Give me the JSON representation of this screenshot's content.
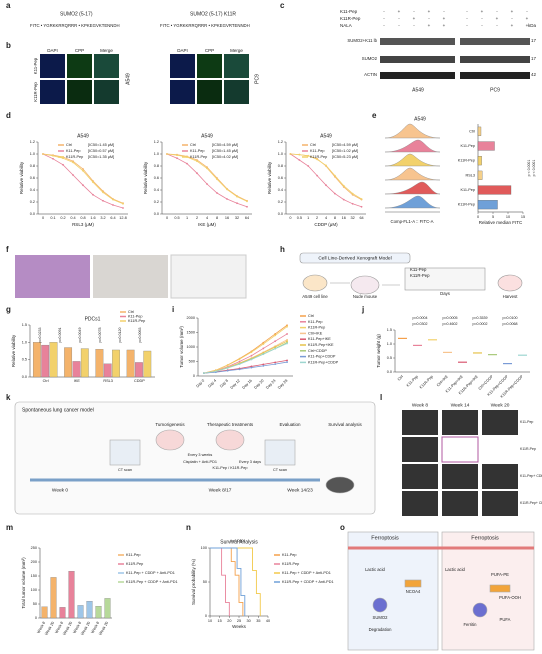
{
  "figure": {
    "labels": [
      "a",
      "b",
      "c",
      "d",
      "e",
      "f",
      "g",
      "h",
      "i",
      "j",
      "k",
      "l",
      "m",
      "n",
      "o"
    ],
    "a": {
      "peptides": [
        {
          "name": "SUMO2 (5-17)",
          "sequence": "FITC • YGRKKRRQRRR • KPKEGVKTENNDH"
        },
        {
          "name": "SUMO2 (5-17) K11R",
          "sequence": "FITC • YGRKKRRQRRR • KPKEGVRTENNDH"
        }
      ]
    },
    "b": {
      "headers": [
        "DAPI",
        "CPP",
        "Merge",
        "DAPI",
        "CPP",
        "Merge"
      ],
      "rows": [
        "K11-Pep",
        "K11R-Pep"
      ],
      "cells": [
        "A549",
        "PC9"
      ]
    },
    "c": {
      "rows": [
        "K11-Pep",
        "K11R-Pep",
        "NALA"
      ],
      "signs": [
        [
          "-",
          "+",
          "-",
          "+",
          "-",
          "-",
          "+",
          "-",
          "+",
          "-"
        ],
        [
          "-",
          "-",
          "+",
          "-",
          "+",
          "-",
          "-",
          "+",
          "-",
          "+"
        ],
        [
          "-",
          "-",
          "-",
          "+",
          "+",
          "-",
          "-",
          "-",
          "+",
          "+"
        ]
      ],
      "bands": [
        "SUMO2+K11 lb",
        "SUMO2",
        "ACTIN"
      ],
      "unit": "kDa",
      "weights": [
        "17",
        "17",
        "42"
      ],
      "cells": [
        "A549",
        "PC9"
      ]
    },
    "e": {
      "title": "A549",
      "histogram_axis": "Comp-FL1-A :: FITC-A"
    },
    "h": {
      "title": "Cell Line-Derived Xenograft Model",
      "texts": [
        "A549 cell line",
        "Nude mouse",
        "Harvest",
        "Days",
        "K11-Pep",
        "K11R-Pep"
      ]
    },
    "k": {
      "title": "Spontaneous lung cancer model",
      "steps": [
        "Tumorigenesis",
        "Therapeutic treatments",
        "Evaluation",
        "Survival analysis"
      ],
      "weeks": [
        "Week 0",
        "Week 8/17",
        "Week 14/23"
      ],
      "notes": [
        "CT scan",
        "Every 3 weeks",
        "Every 3 days",
        "K11-Pep / K11R-Pep",
        "Cisplatin + Anti-PD1",
        "CT scan"
      ]
    },
    "l": {
      "headers": [
        "Week 8",
        "Week 14",
        "Week 20"
      ],
      "rows": [
        "K11-Pep",
        "K11R-Pep",
        "K11-Pep+ CDDP+ Anti-PD1",
        "K11R-Pep+ CDDP+ Anti-PD1"
      ]
    },
    "m": {
      "annotations": [
        "264.2%",
        "339.1%",
        "32.1%",
        "66.4%",
        "p = 0.0008",
        "p = 0.0011"
      ]
    },
    "o": {
      "texts": [
        "Ferroptosis",
        "Ferroptosis",
        "Lactic acid",
        "Lactic acid",
        "SUMO2",
        "NCOA4",
        "Degradation",
        "Ferritin",
        "PUFA-PE",
        "PUFA-OOH",
        "PUFA"
      ]
    }
  },
  "chart_data": [
    {
      "type": "line",
      "title": "A549",
      "x_label": "RSL3 (μM)",
      "y_label": "Relative viability",
      "categories": [
        "0",
        "0.1",
        "0.2",
        "0.4",
        "0.8",
        "1.6",
        "3.2",
        "6.4",
        "12.8"
      ],
      "ylim": [
        0,
        1.2
      ],
      "yticks": [
        {
          "value": 0,
          "label": "0.0"
        },
        {
          "value": 0.2,
          "label": "0.2"
        },
        {
          "value": 0.4,
          "label": "0.4"
        },
        {
          "value": 0.6,
          "label": "0.6"
        },
        {
          "value": 0.8,
          "label": "0.8"
        },
        {
          "value": 1,
          "label": "1.0"
        },
        {
          "value": 1.2,
          "label": "1.2"
        }
      ],
      "series": [
        {
          "name": "Ctrl",
          "ic50": "[IC50=1.45 μM]",
          "color": "#f4b36b",
          "values": [
            1,
            0.98,
            0.95,
            0.88,
            0.75,
            0.55,
            0.38,
            0.25,
            0.18
          ]
        },
        {
          "name": "K11-Pep",
          "ic50": "[IC50=0.57 μM]",
          "color": "#e8829a",
          "values": [
            1,
            0.92,
            0.82,
            0.65,
            0.48,
            0.32,
            0.22,
            0.15,
            0.1
          ]
        },
        {
          "name": "K11R-Pep",
          "ic50": "[IC50=1.35 μM]",
          "color": "#f2d16b",
          "values": [
            1,
            0.97,
            0.93,
            0.86,
            0.72,
            0.53,
            0.36,
            0.24,
            0.17
          ]
        }
      ]
    },
    {
      "type": "line",
      "title": "A549",
      "x_label": "IKE (μM)",
      "y_label": "Relative viability",
      "categories": [
        "0",
        "0.5",
        "1",
        "2",
        "4",
        "8",
        "16",
        "32",
        "64"
      ],
      "ylim": [
        0,
        1.2
      ],
      "yticks": [
        {
          "value": 0,
          "label": "0.0"
        },
        {
          "value": 0.2,
          "label": "0.2"
        },
        {
          "value": 0.4,
          "label": "0.4"
        },
        {
          "value": 0.6,
          "label": "0.6"
        },
        {
          "value": 0.8,
          "label": "0.8"
        },
        {
          "value": 1,
          "label": "1.0"
        },
        {
          "value": 1.2,
          "label": "1.2"
        }
      ],
      "series": [
        {
          "name": "Ctrl",
          "ic50": "[IC50=4.59 μM]",
          "color": "#f4b36b",
          "values": [
            1,
            0.99,
            0.96,
            0.9,
            0.78,
            0.6,
            0.42,
            0.3,
            0.22
          ]
        },
        {
          "name": "K11-Pep",
          "ic50": "[IC50=1.45 μM]",
          "color": "#e8829a",
          "values": [
            1,
            0.93,
            0.84,
            0.68,
            0.5,
            0.35,
            0.25,
            0.18,
            0.12
          ]
        },
        {
          "name": "K11R-Pep",
          "ic50": "[IC50=4.02 μM]",
          "color": "#f2d16b",
          "values": [
            1,
            0.98,
            0.95,
            0.88,
            0.76,
            0.58,
            0.41,
            0.29,
            0.21
          ]
        }
      ]
    },
    {
      "type": "line",
      "title": "A549",
      "x_label": "CDDP (μM)",
      "y_label": "Relative viability",
      "categories": [
        "0",
        "0.5",
        "1",
        "2",
        "4",
        "8",
        "16",
        "32",
        "64"
      ],
      "ylim": [
        0,
        1.2
      ],
      "yticks": [
        {
          "value": 0,
          "label": "0.0"
        },
        {
          "value": 0.2,
          "label": "0.2"
        },
        {
          "value": 0.4,
          "label": "0.4"
        },
        {
          "value": 0.6,
          "label": "0.6"
        },
        {
          "value": 0.8,
          "label": "0.8"
        },
        {
          "value": 1,
          "label": "1.0"
        },
        {
          "value": 1.2,
          "label": "1.2"
        }
      ],
      "series": [
        {
          "name": "Ctrl",
          "ic50": "[IC50=4.59 μM]",
          "color": "#f4b36b",
          "values": [
            1,
            0.99,
            0.97,
            0.92,
            0.8,
            0.62,
            0.45,
            0.32,
            0.24
          ]
        },
        {
          "name": "K11-Pep",
          "ic50": "[IC50=1.02 μM]",
          "color": "#e8829a",
          "values": [
            1,
            0.9,
            0.8,
            0.64,
            0.48,
            0.34,
            0.24,
            0.17,
            0.12
          ]
        },
        {
          "name": "K11R-Pep",
          "ic50": "[IC50=5.23 μM]",
          "color": "#f2d16b",
          "values": [
            1,
            0.99,
            0.97,
            0.91,
            0.81,
            0.64,
            0.47,
            0.34,
            0.25
          ]
        }
      ]
    },
    {
      "type": "hbar",
      "x_label": "Relative median FITC",
      "categories": [
        "Ctrl",
        "K11-Pep",
        "K11R-Pep",
        "RSL3",
        "K11-Pep",
        "K11R-Pep"
      ],
      "values": [
        1,
        5.5,
        1.2,
        1.4,
        11,
        6.5
      ],
      "colors": [
        "#f5d08a",
        "#e8829a",
        "#f2d16b",
        "#f5d08a",
        "#e05a5a",
        "#6fa0d8"
      ],
      "xlim": [
        0,
        15
      ],
      "xticks": [
        0,
        5,
        10,
        15
      ],
      "annotations": [
        "p < 0.0001",
        "p < 0.0001"
      ]
    },
    {
      "type": "bar",
      "title": "PDCs1",
      "y_label": "Relative viability",
      "categories": [
        "Ctrl",
        "IKE",
        "RSL3",
        "CDDP"
      ],
      "ylim": [
        0,
        1.5
      ],
      "yticks": [
        {
          "value": 0,
          "label": "0.0"
        },
        {
          "value": 0.5,
          "label": "0.5"
        },
        {
          "value": 1,
          "label": "1.0"
        },
        {
          "value": 1.5,
          "label": "1.5"
        }
      ],
      "series": [
        {
          "name": "Ctrl",
          "color": "#f4b36b",
          "values": [
            1,
            0.85,
            0.8,
            0.78
          ]
        },
        {
          "name": "K11-Pep",
          "color": "#e8829a",
          "values": [
            0.92,
            0.45,
            0.38,
            0.42
          ]
        },
        {
          "name": "K11R-Pep",
          "color": "#f2d16b",
          "values": [
            1,
            0.82,
            0.78,
            0.75
          ]
        }
      ],
      "annotations": [
        "p=0.0233",
        "p=0.0091",
        "p=0.0049",
        "p=0.0078",
        "p=0.0120",
        "p=0.0063"
      ]
    },
    {
      "type": "line",
      "y_label": "Tumor volume (mm³)",
      "categories": [
        "Day 0",
        "Day 4",
        "Day 8",
        "Day 12",
        "Day 16",
        "Day 20",
        "Day 24",
        "Day 28"
      ],
      "ylim": [
        0,
        2000
      ],
      "yticks": [
        0,
        500,
        1000,
        1500,
        2000
      ],
      "series": [
        {
          "name": "Ctrl",
          "color": "#f4a04b",
          "values": [
            100,
            200,
            380,
            600,
            850,
            1150,
            1450,
            1750
          ]
        },
        {
          "name": "K11-Pep",
          "color": "#e8829a",
          "values": [
            100,
            180,
            320,
            500,
            700,
            950,
            1200,
            1450
          ]
        },
        {
          "name": "K11R-Pep",
          "color": "#f2d16b",
          "values": [
            100,
            195,
            370,
            580,
            820,
            1100,
            1400,
            1700
          ]
        },
        {
          "name": "Ctrl+IKE",
          "color": "#f7c48f",
          "values": [
            100,
            170,
            300,
            450,
            620,
            820,
            1030,
            1250
          ]
        },
        {
          "name": "K11-Pep+IKE",
          "color": "#d9576f",
          "values": [
            100,
            140,
            200,
            260,
            330,
            400,
            470,
            540
          ]
        },
        {
          "name": "K11R-Pep+IKE",
          "color": "#e6c24a",
          "values": [
            100,
            165,
            290,
            440,
            600,
            800,
            1000,
            1200
          ]
        },
        {
          "name": "Ctrl+CDDP",
          "color": "#a9c97a",
          "values": [
            100,
            160,
            280,
            420,
            580,
            760,
            950,
            1150
          ]
        },
        {
          "name": "K11-Pep+CDDP",
          "color": "#7a9bd6",
          "values": [
            100,
            130,
            180,
            230,
            290,
            350,
            410,
            480
          ]
        },
        {
          "name": "K11R-Pep+CDDP",
          "color": "#9dd6d0",
          "values": [
            100,
            160,
            275,
            410,
            570,
            750,
            940,
            1120
          ]
        }
      ]
    },
    {
      "type": "dot",
      "y_label": "Tumor weight (g)",
      "categories": [
        "Ctrl",
        "K11-Pep",
        "K11R-Pep",
        "Ctrl+IKE",
        "K11-Pep+IKE",
        "K11R-Pep+IKE",
        "Ctrl+CDDP",
        "K11-Pep+CDDP",
        "K11R-Pep+CDDP"
      ],
      "values": [
        1.2,
        0.95,
        1.15,
        0.7,
        0.35,
        0.68,
        0.62,
        0.3,
        0.6
      ],
      "colors": [
        "#f4a04b",
        "#e8829a",
        "#f2d16b",
        "#f7c48f",
        "#d9576f",
        "#e6c24a",
        "#a9c97a",
        "#7a9bd6",
        "#9dd6d0"
      ],
      "ylim": [
        0,
        1.5
      ],
      "yticks": [
        {
          "value": 0,
          "label": "0.0"
        },
        {
          "value": 0.5,
          "label": "0.5"
        },
        {
          "value": 1,
          "label": "1.0"
        },
        {
          "value": 1.5,
          "label": "1.5"
        }
      ],
      "annotations": [
        "p=0.0004",
        "p=0.0005",
        "p=0.3539",
        "p=0.0100",
        "p=0.0302",
        "p=0.4602",
        "p=0.0002",
        "p=0.0068"
      ]
    },
    {
      "type": "bar",
      "y_label": "Total tumor volume (mm³)",
      "categories": [
        "Week 8",
        "Week 20",
        "Week 8",
        "Week 20",
        "Week 8",
        "Week 20",
        "Week 8",
        "Week 20"
      ],
      "values": [
        40,
        145,
        38,
        167,
        45,
        60,
        42,
        70
      ],
      "colors": [
        "#f4b36b",
        "#f4b36b",
        "#e8829a",
        "#e8829a",
        "#9ec6e8",
        "#9ec6e8",
        "#b7d99a",
        "#b7d99a"
      ],
      "ylim": [
        0,
        250
      ],
      "yticks": [
        0,
        50,
        100,
        150,
        200,
        250
      ],
      "legend": [
        "K11-Pep",
        "K11R-Pep",
        "K11-Pep + CDDP + Anti-PD1",
        "K11R-Pep + CDDP + Anti-PD1"
      ]
    },
    {
      "type": "step",
      "title": "Survival Analysis",
      "x_label": "Weeks",
      "y_label": "Survival probability (%)",
      "xlim": [
        10,
        40
      ],
      "xticks": [
        10,
        15,
        20,
        25,
        30,
        35,
        40
      ],
      "ylim": [
        0,
        100
      ],
      "yticks": [
        0,
        50,
        100
      ],
      "annotations": [
        "p<0.0001"
      ],
      "series": [
        {
          "name": "K11-Pep",
          "color": "#f4a04b",
          "x": [
            10,
            19,
            21,
            23,
            25,
            27
          ],
          "values": [
            100,
            100,
            80,
            60,
            20,
            0
          ]
        },
        {
          "name": "K11R-Pep",
          "color": "#e8829a",
          "x": [
            10,
            14,
            16,
            18,
            20
          ],
          "values": [
            100,
            100,
            60,
            20,
            0
          ]
        },
        {
          "name": "K11-Pep + CDDP + Anti-PD1",
          "color": "#f2c94a",
          "x": [
            10,
            28,
            32,
            34,
            36
          ],
          "values": [
            100,
            100,
            67,
            33,
            0
          ]
        },
        {
          "name": "K11R-Pep + CDDP + Anti-PD1",
          "color": "#6fa0d8",
          "x": [
            10,
            22,
            24,
            26,
            28
          ],
          "values": [
            100,
            100,
            70,
            30,
            0
          ]
        }
      ]
    }
  ]
}
